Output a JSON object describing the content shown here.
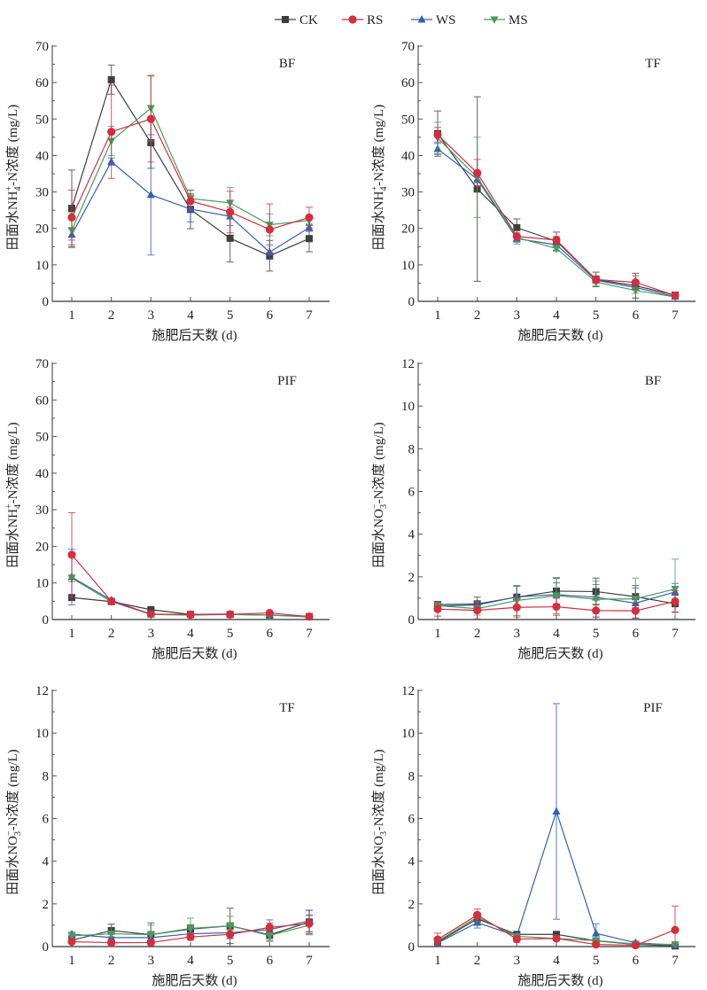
{
  "legend": {
    "entries": [
      {
        "name": "CK",
        "color": "#3f3f3f",
        "marker": "square"
      },
      {
        "name": "RS",
        "color": "#d0303f",
        "marker": "circle"
      },
      {
        "name": "WS",
        "color": "#3560b0",
        "marker": "triangle-up"
      },
      {
        "name": "MS",
        "color": "#4e9a5c",
        "marker": "triangle-down"
      }
    ],
    "placement": "top-center"
  },
  "chart_data": [
    {
      "type": "line",
      "panel_label": "BF",
      "xlabel": "施肥后天数 (d)",
      "ylabel": "田面水NH4+-N浓度 (mg/L)",
      "ylabel_parts": {
        "pre": "田面水NH",
        "sub": "4",
        "sup": "+",
        "post": "-N浓度 (mg/L)"
      },
      "x": [
        1,
        2,
        3,
        4,
        5,
        6,
        7
      ],
      "xticks": [
        "1",
        "2",
        "3",
        "4",
        "5",
        "6",
        "7"
      ],
      "ylim": [
        0,
        70
      ],
      "yticks": [
        "0",
        "10",
        "20",
        "30",
        "40",
        "50",
        "60",
        "70"
      ],
      "series": [
        {
          "name": "CK",
          "values": [
            25.5,
            60.8,
            43.5,
            25.2,
            17.3,
            12.5,
            17.2
          ],
          "err": [
            10.5,
            4.0,
            7.0,
            5.3,
            6.5,
            4.2,
            3.6
          ]
        },
        {
          "name": "RS",
          "values": [
            23.0,
            46.5,
            50.0,
            27.5,
            24.5,
            19.7,
            23.0
          ],
          "err": [
            7.5,
            12.8,
            11.8,
            2.0,
            5.7,
            7.0,
            2.8
          ]
        },
        {
          "name": "WS",
          "values": [
            18.3,
            38.3,
            29.2,
            25.3,
            23.3,
            13.5,
            20.2
          ],
          "err": [
            1.5,
            1.0,
            16.5,
            3.5,
            2.5,
            2.0,
            1.0
          ]
        },
        {
          "name": "MS",
          "values": [
            19.5,
            44.0,
            53.0,
            28.2,
            27.0,
            21.0,
            22.2
          ],
          "err": [
            4.8,
            4.0,
            9.0,
            1.0,
            4.2,
            3.0,
            1.2
          ]
        }
      ]
    },
    {
      "type": "line",
      "panel_label": "TF",
      "xlabel": "施肥后天数 (d)",
      "ylabel": "田面水NH4+-N浓度 (mg/L)",
      "ylabel_parts": {
        "pre": "田面水NH",
        "sub": "4",
        "sup": "+",
        "post": "-N浓度 (mg/L)"
      },
      "x": [
        1,
        2,
        3,
        4,
        5,
        6,
        7
      ],
      "xticks": [
        "1",
        "2",
        "3",
        "4",
        "5",
        "6",
        "7"
      ],
      "ylim": [
        0,
        70
      ],
      "yticks": [
        "0",
        "10",
        "20",
        "30",
        "40",
        "50",
        "60",
        "70"
      ],
      "series": [
        {
          "name": "CK",
          "values": [
            46.0,
            30.8,
            20.2,
            16.5,
            6.0,
            4.3,
            1.7
          ],
          "err": [
            6.2,
            25.3,
            2.4,
            2.5,
            2.0,
            3.4,
            0.4
          ]
        },
        {
          "name": "RS",
          "values": [
            45.7,
            35.2,
            17.8,
            16.8,
            6.0,
            5.2,
            1.6
          ],
          "err": [
            2.0,
            3.7,
            1.0,
            1.0,
            1.0,
            1.8,
            0.4
          ]
        },
        {
          "name": "WS",
          "values": [
            41.8,
            33.5,
            17.2,
            15.5,
            5.8,
            3.8,
            1.3
          ],
          "err": [
            1.5,
            1.0,
            1.0,
            0.8,
            0.6,
            0.6,
            0.3
          ]
        },
        {
          "name": "MS",
          "values": [
            44.8,
            34.0,
            17.5,
            14.5,
            5.3,
            3.0,
            1.2
          ],
          "err": [
            4.3,
            11.0,
            1.8,
            0.8,
            1.0,
            0.8,
            0.3
          ]
        }
      ]
    },
    {
      "type": "line",
      "panel_label": "PIF",
      "xlabel": "施肥后天数 (d)",
      "ylabel": "田面水NH4+-N浓度 (mg/L)",
      "ylabel_parts": {
        "pre": "田面水NH",
        "sub": "4",
        "sup": "+",
        "post": "-N浓度 (mg/L)"
      },
      "x": [
        1,
        2,
        3,
        4,
        5,
        6,
        7
      ],
      "xticks": [
        "1",
        "2",
        "3",
        "4",
        "5",
        "6",
        "7"
      ],
      "ylim": [
        0,
        70
      ],
      "yticks": [
        "0",
        "10",
        "20",
        "30",
        "40",
        "50",
        "60",
        "70"
      ],
      "series": [
        {
          "name": "CK",
          "values": [
            6.0,
            4.9,
            2.7,
            1.4,
            1.4,
            1.2,
            0.8
          ],
          "err": [
            0.5,
            0.4,
            0.3,
            0.2,
            0.2,
            0.2,
            0.2
          ]
        },
        {
          "name": "RS",
          "values": [
            17.7,
            5.0,
            1.5,
            1.3,
            1.4,
            1.8,
            0.8
          ],
          "err": [
            11.5,
            0.5,
            0.3,
            0.3,
            0.3,
            0.3,
            0.2
          ]
        },
        {
          "name": "WS",
          "values": [
            11.6,
            5.3,
            1.4,
            1.4,
            1.5,
            1.2,
            0.9
          ],
          "err": [
            7.6,
            0.5,
            0.3,
            0.3,
            0.4,
            0.3,
            0.3
          ]
        },
        {
          "name": "MS",
          "values": [
            11.3,
            4.9,
            1.4,
            1.2,
            1.4,
            1.2,
            0.7
          ],
          "err": [
            1.0,
            0.5,
            0.3,
            0.3,
            0.3,
            0.3,
            0.2
          ]
        }
      ]
    },
    {
      "type": "line",
      "panel_label": "BF",
      "xlabel": "施肥后天数 (d)",
      "ylabel": "田面水NO3−-N浓度 (mg/L)",
      "ylabel_parts": {
        "pre": "田面水NO",
        "sub": "3",
        "sup": "−",
        "post": "-N浓度 (mg/L)"
      },
      "x": [
        1,
        2,
        3,
        4,
        5,
        6,
        7
      ],
      "xticks": [
        "1",
        "2",
        "3",
        "4",
        "5",
        "6",
        "7"
      ],
      "ylim": [
        0,
        12
      ],
      "yticks": [
        "0",
        "2",
        "4",
        "6",
        "8",
        "10",
        "12"
      ],
      "series": [
        {
          "name": "CK",
          "values": [
            0.7,
            0.73,
            1.05,
            1.33,
            1.31,
            1.07,
            0.74
          ],
          "err": [
            0.12,
            0.32,
            0.53,
            0.6,
            0.63,
            0.52,
            0.4
          ]
        },
        {
          "name": "RS",
          "values": [
            0.49,
            0.43,
            0.57,
            0.6,
            0.42,
            0.41,
            0.85
          ],
          "err": [
            0.33,
            0.4,
            0.45,
            0.4,
            0.3,
            0.35,
            0.5
          ]
        },
        {
          "name": "WS",
          "values": [
            0.63,
            0.68,
            1.06,
            1.17,
            1.04,
            0.77,
            1.29
          ],
          "err": [
            0.1,
            0.2,
            0.5,
            0.55,
            0.6,
            0.7,
            0.4
          ]
        },
        {
          "name": "MS",
          "values": [
            0.65,
            0.51,
            0.89,
            1.12,
            0.95,
            0.97,
            1.43
          ],
          "err": [
            0.15,
            0.3,
            0.7,
            0.85,
            0.85,
            0.97,
            1.4
          ]
        }
      ]
    },
    {
      "type": "line",
      "panel_label": "TF",
      "xlabel": "施肥后天数 (d)",
      "ylabel": "田面水NO3−-N浓度 (mg/L)",
      "ylabel_parts": {
        "pre": "田面水NO",
        "sub": "3",
        "sup": "−",
        "post": "-N浓度 (mg/L)"
      },
      "x": [
        1,
        2,
        3,
        4,
        5,
        6,
        7
      ],
      "xticks": [
        "1",
        "2",
        "3",
        "4",
        "5",
        "6",
        "7"
      ],
      "ylim": [
        0,
        12
      ],
      "yticks": [
        "0",
        "2",
        "4",
        "6",
        "8",
        "10",
        "12"
      ],
      "series": [
        {
          "name": "CK",
          "values": [
            0.3,
            0.75,
            0.56,
            0.82,
            0.97,
            0.55,
            1.15
          ],
          "err": [
            0.1,
            0.3,
            0.55,
            0.2,
            0.83,
            0.3,
            0.55
          ]
        },
        {
          "name": "RS",
          "values": [
            0.23,
            0.18,
            0.19,
            0.45,
            0.57,
            0.9,
            1.08
          ],
          "err": [
            0.08,
            0.1,
            0.1,
            0.15,
            0.2,
            0.2,
            0.4
          ]
        },
        {
          "name": "WS",
          "values": [
            0.58,
            0.42,
            0.42,
            0.6,
            0.65,
            0.8,
            1.2
          ],
          "err": [
            0.1,
            0.15,
            0.15,
            0.2,
            0.25,
            0.45,
            0.5
          ]
        },
        {
          "name": "MS",
          "values": [
            0.5,
            0.6,
            0.56,
            0.85,
            0.97,
            0.52,
            1.0
          ],
          "err": [
            0.1,
            0.45,
            0.45,
            0.48,
            0.45,
            0.25,
            0.45
          ]
        }
      ]
    },
    {
      "type": "line",
      "panel_label": "PIF",
      "xlabel": "施肥后天数 (d)",
      "ylabel": "田面水NO3−-N浓度 (mg/L)",
      "ylabel_parts": {
        "pre": "田面水NO",
        "sub": "3",
        "sup": "−",
        "post": "-N浓度 (mg/L)"
      },
      "x": [
        1,
        2,
        3,
        4,
        5,
        6,
        7
      ],
      "xticks": [
        "1",
        "2",
        "3",
        "4",
        "5",
        "6",
        "7"
      ],
      "ylim": [
        0,
        12
      ],
      "yticks": [
        "0",
        "2",
        "4",
        "6",
        "8",
        "10",
        "12"
      ],
      "series": [
        {
          "name": "CK",
          "values": [
            0.2,
            1.3,
            0.57,
            0.57,
            0.27,
            0.1,
            0.03
          ],
          "err": [
            0.05,
            0.15,
            0.1,
            0.1,
            0.05,
            0.05,
            0.03
          ]
        },
        {
          "name": "RS",
          "values": [
            0.33,
            1.48,
            0.35,
            0.38,
            0.1,
            0.06,
            0.78
          ],
          "err": [
            0.3,
            0.28,
            0.15,
            0.1,
            0.05,
            0.05,
            1.12
          ]
        },
        {
          "name": "WS",
          "values": [
            0.17,
            1.12,
            0.5,
            6.33,
            0.62,
            0.18,
            0.07
          ],
          "err": [
            0.05,
            0.25,
            0.1,
            5.05,
            0.45,
            0.08,
            0.05
          ]
        },
        {
          "name": "MS",
          "values": [
            0.25,
            1.38,
            0.48,
            0.38,
            0.28,
            0.12,
            0.1
          ],
          "err": [
            0.05,
            0.2,
            0.1,
            0.1,
            0.05,
            0.05,
            0.05
          ]
        }
      ]
    }
  ]
}
